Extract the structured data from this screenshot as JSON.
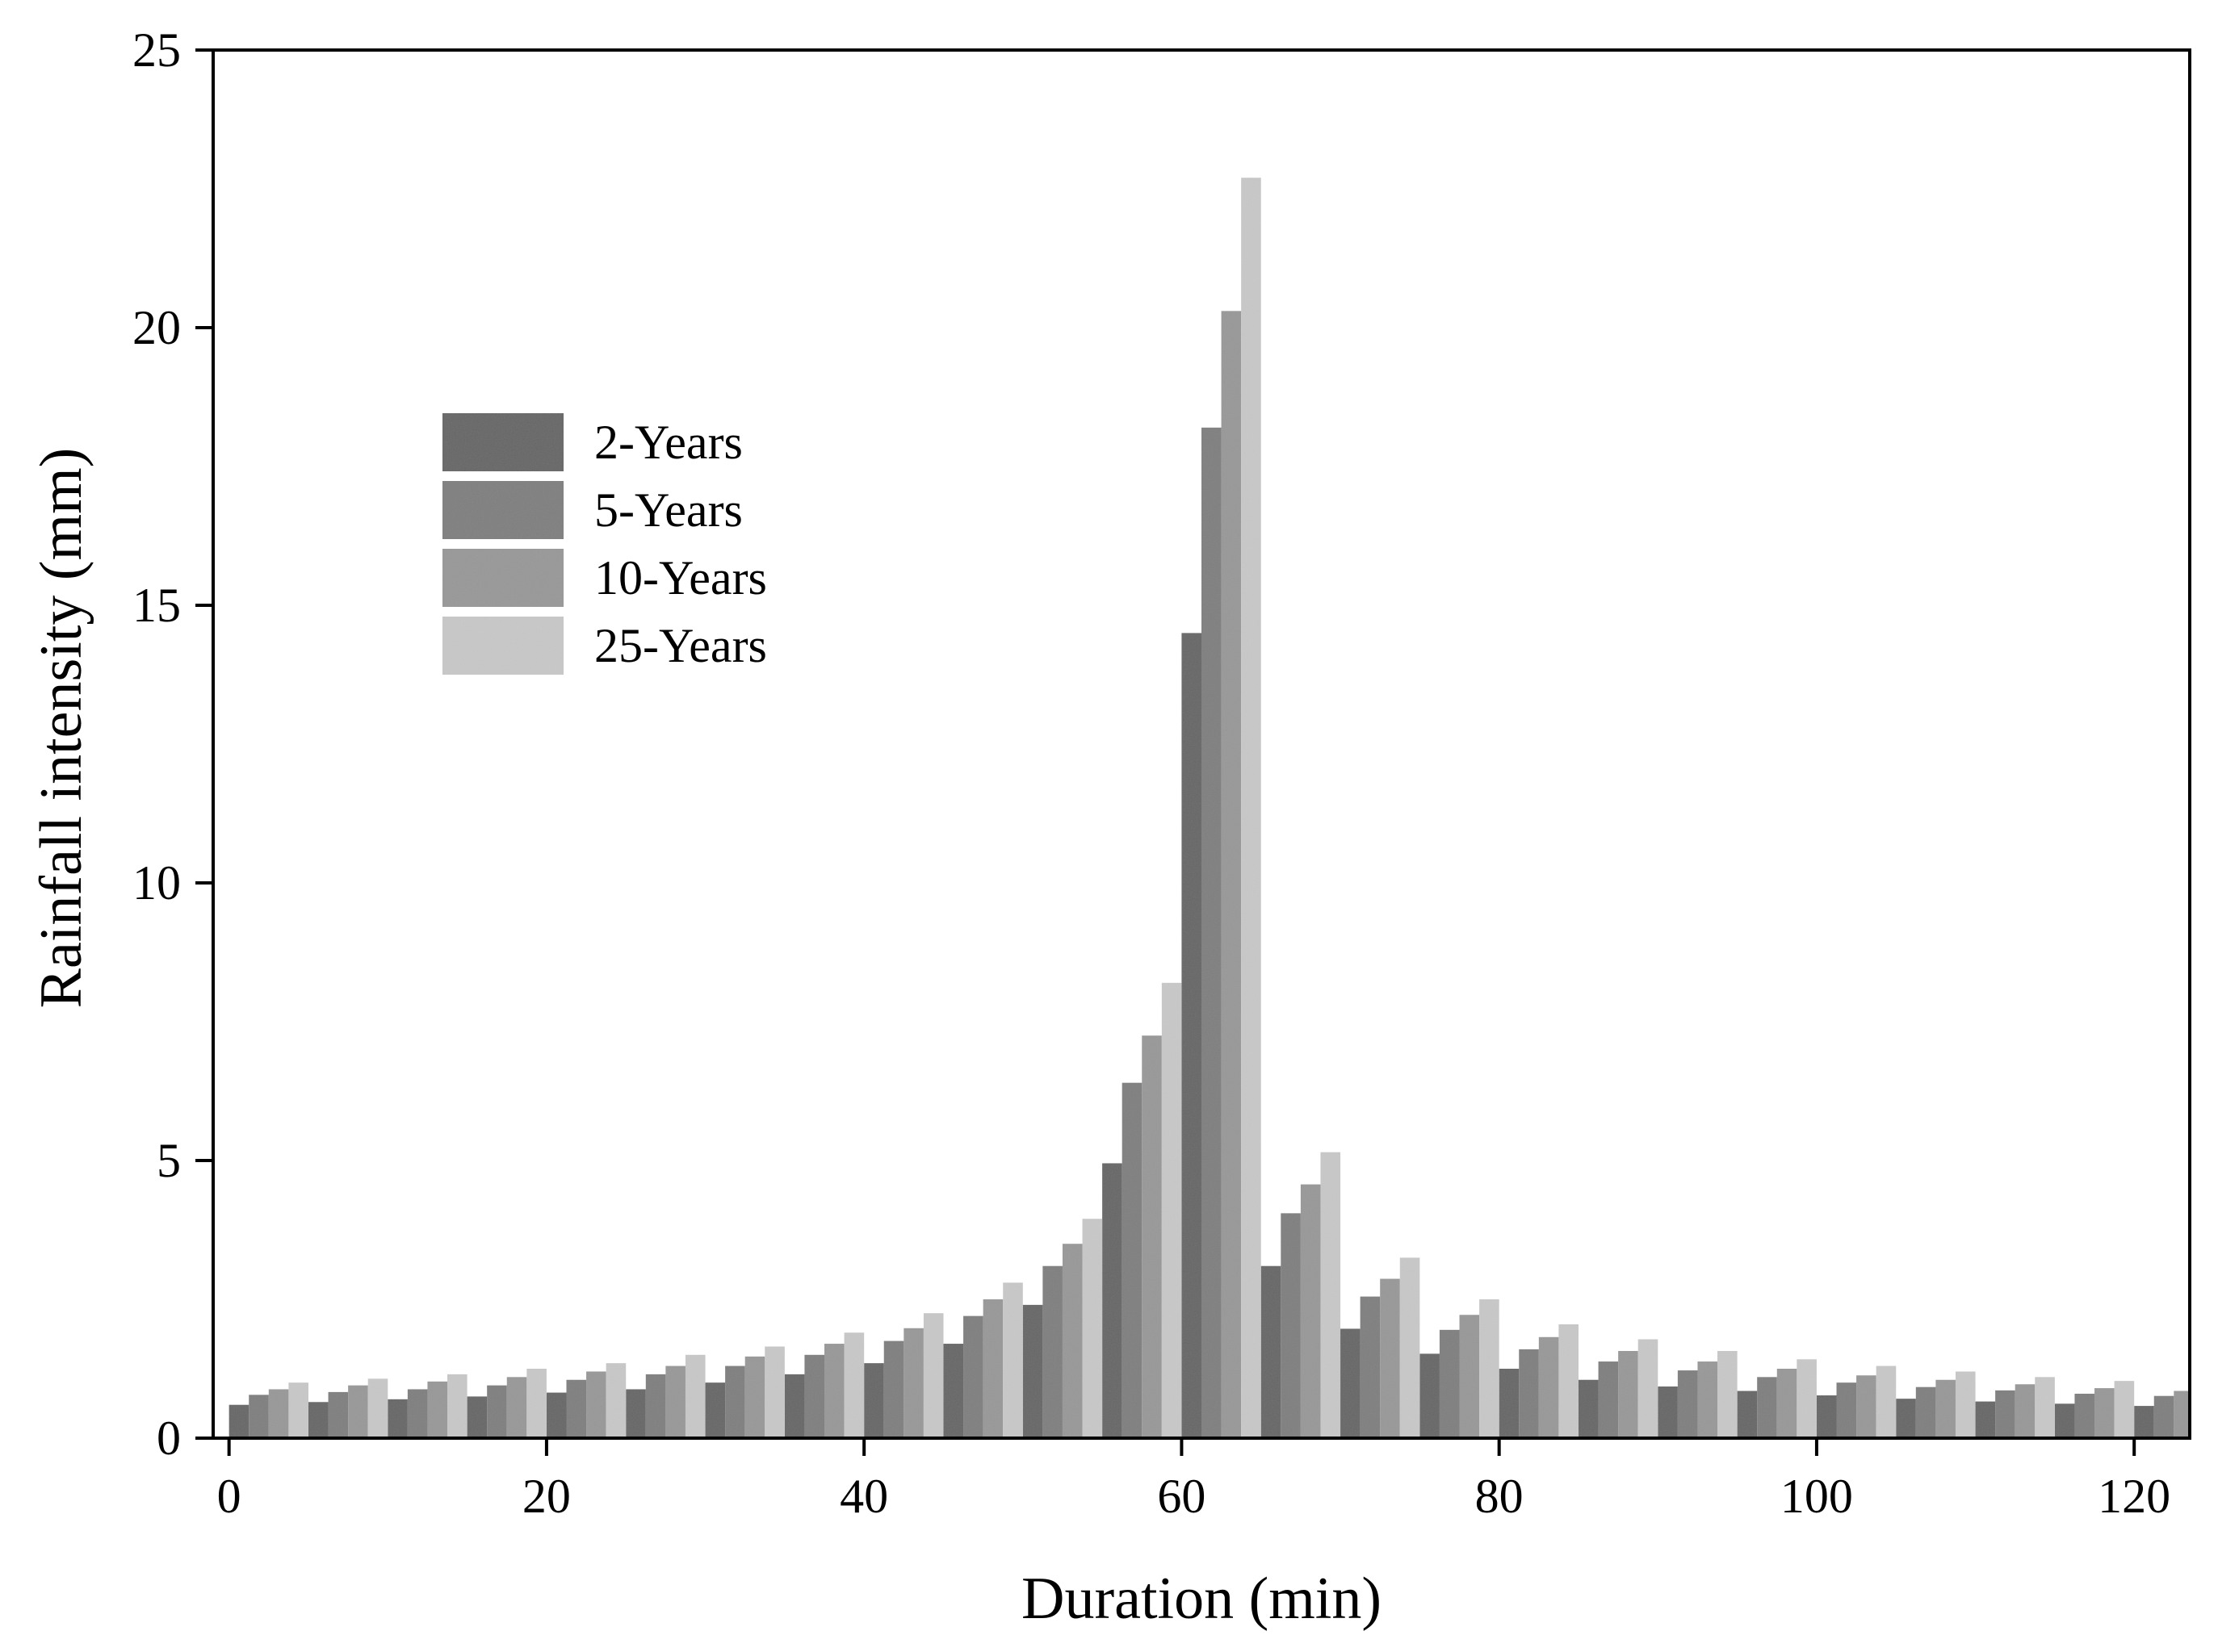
{
  "chart_data": {
    "type": "bar",
    "title": "",
    "xlabel": "Duration (min)",
    "ylabel": "Rainfall intensity (mm)",
    "x": [
      0,
      5,
      10,
      15,
      20,
      25,
      30,
      35,
      40,
      45,
      50,
      55,
      60,
      65,
      70,
      75,
      80,
      85,
      90,
      95,
      100,
      105,
      110,
      115,
      120
    ],
    "xlim": [
      -1,
      123.5
    ],
    "ylim": [
      0,
      25
    ],
    "xticks": [
      "0",
      "20",
      "40",
      "60",
      "80",
      "100",
      "120"
    ],
    "yticks": [
      "0",
      "5",
      "10",
      "15",
      "20",
      "25"
    ],
    "grid": false,
    "legend_position": "upper-left",
    "series": [
      {
        "name": "2-Years",
        "color": "#666666",
        "values": [
          0.6,
          0.65,
          0.7,
          0.75,
          0.82,
          0.88,
          1.0,
          1.15,
          1.35,
          1.7,
          2.4,
          4.95,
          14.5,
          3.1,
          1.97,
          1.52,
          1.25,
          1.05,
          0.93,
          0.85,
          0.77,
          0.71,
          0.66,
          0.62,
          0.58
        ]
      },
      {
        "name": "5-Years",
        "color": "#7f7f7f",
        "values": [
          0.78,
          0.83,
          0.88,
          0.95,
          1.05,
          1.15,
          1.3,
          1.5,
          1.75,
          2.2,
          3.1,
          6.4,
          18.2,
          4.05,
          2.55,
          1.95,
          1.6,
          1.38,
          1.22,
          1.1,
          1.0,
          0.92,
          0.86,
          0.8,
          0.76
        ]
      },
      {
        "name": "10-Years",
        "color": "#989898",
        "values": [
          0.88,
          0.95,
          1.02,
          1.1,
          1.2,
          1.3,
          1.47,
          1.7,
          1.98,
          2.5,
          3.5,
          7.25,
          20.3,
          4.57,
          2.87,
          2.22,
          1.82,
          1.57,
          1.38,
          1.25,
          1.13,
          1.05,
          0.97,
          0.9,
          0.85
        ]
      },
      {
        "name": "25-Years",
        "color": "#c8c8c8",
        "values": [
          1.0,
          1.07,
          1.15,
          1.25,
          1.35,
          1.5,
          1.65,
          1.9,
          2.25,
          2.8,
          3.95,
          8.2,
          22.7,
          5.15,
          3.25,
          2.5,
          2.05,
          1.78,
          1.57,
          1.42,
          1.3,
          1.2,
          1.1,
          1.03,
          0.97
        ]
      }
    ]
  }
}
